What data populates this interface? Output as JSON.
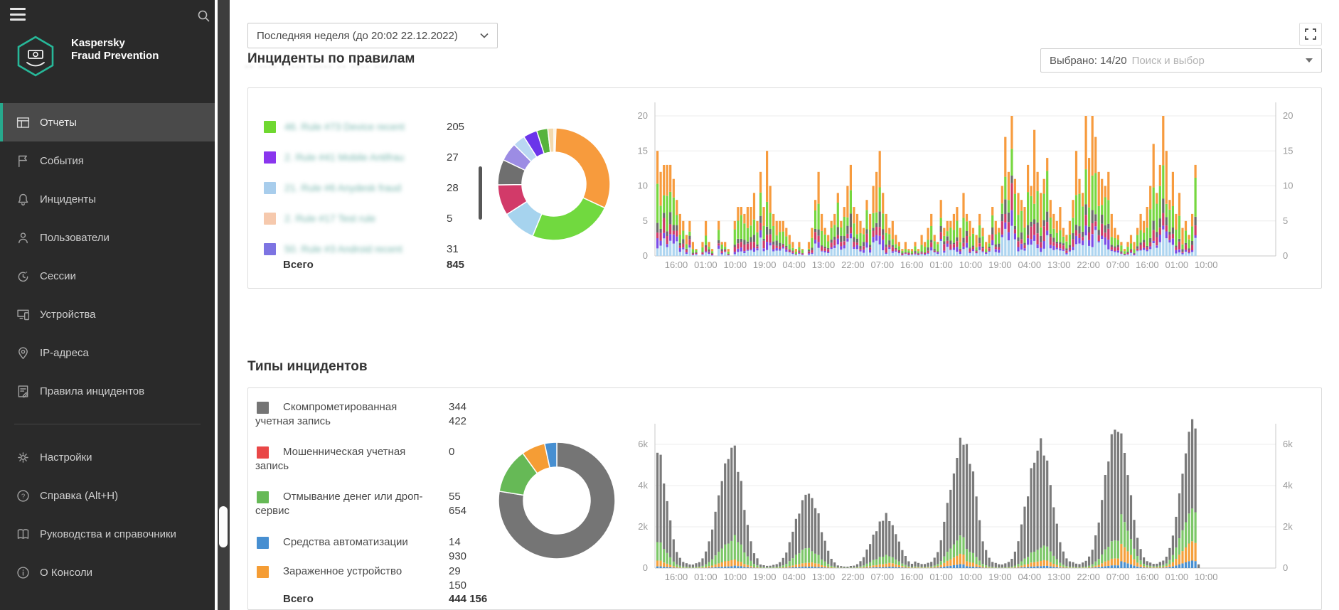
{
  "app": {
    "brand_line1": "Kaspersky",
    "brand_line2": "Fraud Prevention",
    "accent_color": "#27a98d"
  },
  "sidebar": {
    "items": [
      {
        "label": "Отчеты",
        "icon": "reports-icon",
        "selected": true
      },
      {
        "label": "События",
        "icon": "flag-icon"
      },
      {
        "label": "Инциденты",
        "icon": "bell-icon"
      },
      {
        "label": "Пользователи",
        "icon": "user-icon"
      },
      {
        "label": "Сессии",
        "icon": "clock-icon"
      },
      {
        "label": "Устройства",
        "icon": "devices-icon"
      },
      {
        "label": "IP-адреса",
        "icon": "location-pin-icon"
      },
      {
        "label": "Правила инцидентов",
        "icon": "document-icon"
      }
    ],
    "footer_items": [
      {
        "label": "Настройки",
        "icon": "gear-icon"
      },
      {
        "label": "Справка (Alt+H)",
        "icon": "help-icon"
      },
      {
        "label": "Руководства и справочники",
        "icon": "book-icon"
      },
      {
        "label": "О Консоли",
        "icon": "info-icon"
      }
    ]
  },
  "topbar": {
    "time_range": "Последняя неделя (до 20:02 22.12.2022)",
    "redacted_text": "·· ···· · ··· ····· ·· ···· ···"
  },
  "section1": {
    "title": "Инциденты по правилам",
    "selector": {
      "selected": "Выбрано: 14/20",
      "placeholder": "Поиск и выбор"
    },
    "legend": [
      {
        "color": "#6fd830",
        "label": "46. Rule #73 Device recent",
        "value": "205"
      },
      {
        "color": "#8a36ee",
        "label": "2. Rule #41 Mobile Antifrau",
        "value": "27"
      },
      {
        "color": "#a8cdec",
        "label": "21. Rule #6 Anydesk fraud",
        "value": "28"
      },
      {
        "color": "#f6c9ad",
        "label": "2. Rule #17 Test rule",
        "value": "5"
      },
      {
        "color": "#7d74e2",
        "label": "50. Rule #3 Android recent",
        "value": "31"
      }
    ],
    "total_label": "Всего",
    "total_value": "845"
  },
  "section2": {
    "title": "Типы инцидентов",
    "legend": [
      {
        "color": "#757575",
        "label": "Скомпрометированная учетная запись",
        "value": "344 422"
      },
      {
        "color": "#e94747",
        "label": "Мошенническая учетная запись",
        "value": "0"
      },
      {
        "color": "#66b956",
        "label": "Отмывание денег или дроп-сервис",
        "value": "55 654"
      },
      {
        "color": "#478fd1",
        "label": "Средства автоматизации",
        "value": "14 930"
      },
      {
        "color": "#f59d35",
        "label": "Зараженное устройство",
        "value": "29 150"
      }
    ],
    "total_label": "Всего",
    "total_value": "444 156"
  },
  "chart_data": [
    {
      "id": "incidents-by-rules-donut",
      "type": "pie",
      "subtype": "donut",
      "title": "Инциденты по правилам",
      "total": 845,
      "segments": [
        {
          "color": "#f8e0bb",
          "value": 5
        },
        {
          "color": "#f79b3d",
          "value": 265
        },
        {
          "color": "#71d93f",
          "value": 205
        },
        {
          "color": "#a6d3ee",
          "value": 82
        },
        {
          "color": "#d23a69",
          "value": 75
        },
        {
          "color": "#6f6f6f",
          "value": 62
        },
        {
          "color": "#9c8ce4",
          "value": 45
        },
        {
          "color": "#b9d7f2",
          "value": 30
        },
        {
          "color": "#6b35ea",
          "value": 34
        },
        {
          "color": "#57b33c",
          "value": 27
        },
        {
          "color": "#f3d9ae",
          "value": 15
        }
      ]
    },
    {
      "id": "incidents-by-rules-timeline",
      "type": "bar",
      "subtype": "stacked-hourly",
      "ylim": [
        0,
        20
      ],
      "y_ticks": [
        0,
        5,
        10,
        15,
        20
      ],
      "grid": true,
      "x_tick_labels": [
        "16:00",
        "01:00",
        "10:00",
        "19:00",
        "04:00",
        "13:00",
        "22:00",
        "07:00",
        "16:00",
        "01:00",
        "10:00",
        "19:00",
        "04:00",
        "13:00",
        "22:00",
        "07:00",
        "16:00",
        "01:00",
        "10:00"
      ],
      "stack_colors": [
        "#aed5f0",
        "#7a4be6",
        "#d03a68",
        "#6a6a6a",
        "#76d73f",
        "#f79b3d"
      ],
      "stack_weights": [
        0.14,
        0.06,
        0.1,
        0.08,
        0.27,
        0.35
      ],
      "bar_totals": [
        [
          15,
          12,
          13,
          13,
          13,
          11,
          8,
          6,
          5,
          3,
          5,
          2,
          1,
          0,
          2,
          5,
          2,
          1,
          0,
          5,
          2,
          2,
          1,
          0
        ],
        [
          5,
          7,
          7,
          6,
          7,
          7,
          9,
          5,
          12,
          7,
          15,
          10,
          6,
          5,
          5,
          5,
          4,
          3,
          2,
          1,
          2,
          1,
          0,
          2
        ],
        [
          4,
          8,
          12,
          6,
          4,
          3,
          5,
          6,
          9,
          5,
          7,
          10,
          13,
          7,
          6,
          5,
          4,
          8,
          6,
          10,
          12,
          15,
          9,
          6
        ],
        [
          4,
          5,
          3,
          2,
          1,
          2,
          1,
          1,
          2,
          1,
          3,
          2,
          4,
          6,
          3,
          2,
          8,
          4,
          5,
          5,
          6,
          7,
          4,
          9
        ],
        [
          6,
          5,
          4,
          3,
          6,
          4,
          2,
          3,
          7,
          5,
          4,
          10,
          17,
          12,
          20,
          11,
          9,
          8,
          7,
          13,
          10,
          18,
          12,
          9
        ],
        [
          11,
          14,
          8,
          6,
          5,
          7,
          4,
          3,
          5,
          8,
          15,
          11,
          9,
          20,
          14,
          20,
          17,
          12,
          11,
          10,
          12,
          6,
          4,
          3
        ],
        [
          2,
          1,
          2,
          3,
          2,
          4,
          6,
          5,
          7,
          10,
          16,
          9,
          13,
          20,
          15,
          8,
          12,
          6,
          9,
          4,
          5,
          3,
          6,
          13
        ]
      ]
    },
    {
      "id": "incident-types-donut",
      "type": "pie",
      "subtype": "donut",
      "title": "Типы инцидентов",
      "total": 444156,
      "segments": [
        {
          "color": "#757575",
          "value": 344422,
          "label": "Скомпрометированная учетная запись"
        },
        {
          "color": "#66b956",
          "value": 55654,
          "label": "Отмывание денег или дроп-сервис"
        },
        {
          "color": "#f59d35",
          "value": 29150,
          "label": "Зараженное устройство"
        },
        {
          "color": "#478fd1",
          "value": 14930,
          "label": "Средства автоматизации"
        }
      ]
    },
    {
      "id": "incident-types-timeline",
      "type": "bar",
      "subtype": "stacked-hourly",
      "ylim_k": [
        0,
        7
      ],
      "y_ticks": [
        "0",
        "2k",
        "4k",
        "6k"
      ],
      "grid": true,
      "x_tick_labels": [
        "16:00",
        "01:00",
        "10:00",
        "19:00",
        "04:00",
        "13:00",
        "22:00",
        "07:00",
        "16:00",
        "01:00",
        "10:00",
        "19:00",
        "04:00",
        "13:00",
        "22:00",
        "07:00",
        "16:00",
        "01:00",
        "10:00"
      ],
      "day_peaks_k": [
        6.2,
        5.8,
        3.6,
        2.5,
        6.3,
        6.0,
        6.9,
        7.1
      ],
      "hour_shape": [
        0.97,
        0.85,
        0.7,
        0.52,
        0.35,
        0.22,
        0.13,
        0.08,
        0.05,
        0.04,
        0.03,
        0.03,
        0.04,
        0.05,
        0.08,
        0.13,
        0.22,
        0.34,
        0.48,
        0.62,
        0.76,
        0.88,
        0.96,
        1.0
      ],
      "series_fractions": {
        "green": [
          0.16,
          0.2,
          0.16,
          0.14,
          0.1,
          0.13,
          0.22
        ],
        "orange": [
          0.05,
          0.05,
          0.06,
          0.08,
          0.04,
          0.05,
          0.13
        ],
        "blue": [
          0.015,
          0.02,
          0.02,
          0.03,
          0.015,
          0.02,
          0.05
        ]
      },
      "colors": {
        "gray": "#7a7a7a",
        "green": "#7cc768",
        "orange": "#f5a03c",
        "blue": "#478fd1"
      }
    }
  ]
}
